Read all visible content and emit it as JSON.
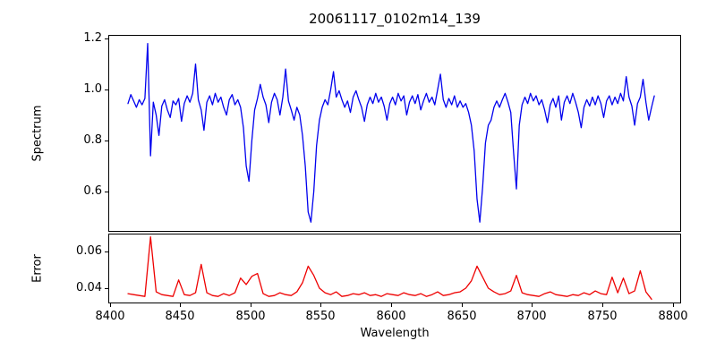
{
  "title": "20061117_0102m14_139",
  "chart_data": {
    "type": "line",
    "title": "20061117_0102m14_139",
    "xlabel": "Wavelength",
    "xlim": [
      8399,
      8806
    ],
    "grid": false,
    "legend": "none",
    "x_ticks": [
      8400,
      8450,
      8500,
      8550,
      8600,
      8650,
      8700,
      8750,
      8800
    ],
    "x_tick_labels": [
      "8400",
      "8450",
      "8500",
      "8550",
      "8600",
      "8650",
      "8700",
      "8750",
      "8800"
    ],
    "absorption_line_wavelengths": [
      8428,
      8498,
      8542,
      8662,
      8688
    ],
    "panels": [
      {
        "name": "spectrum",
        "ylabel": "Spectrum",
        "color": "#0000ee",
        "ylim": [
          0.442,
          1.214
        ],
        "y_ticks": [
          0.6,
          0.8,
          1.0,
          1.2
        ],
        "y_tick_labels": [
          "0.6",
          "0.8",
          "1.0",
          "1.2"
        ],
        "x_start": 8413,
        "x_step": 2,
        "values": [
          0.945,
          0.98,
          0.955,
          0.93,
          0.96,
          0.94,
          0.965,
          1.18,
          0.74,
          0.95,
          0.9,
          0.82,
          0.935,
          0.96,
          0.92,
          0.89,
          0.955,
          0.94,
          0.965,
          0.875,
          0.945,
          0.975,
          0.95,
          0.985,
          1.1,
          0.96,
          0.92,
          0.84,
          0.95,
          0.975,
          0.94,
          0.985,
          0.95,
          0.97,
          0.93,
          0.9,
          0.96,
          0.98,
          0.94,
          0.96,
          0.93,
          0.85,
          0.7,
          0.64,
          0.8,
          0.92,
          0.965,
          1.02,
          0.97,
          0.94,
          0.87,
          0.95,
          0.985,
          0.96,
          0.9,
          0.97,
          1.08,
          0.955,
          0.92,
          0.88,
          0.93,
          0.9,
          0.82,
          0.7,
          0.52,
          0.48,
          0.6,
          0.78,
          0.88,
          0.93,
          0.96,
          0.94,
          1.0,
          1.07,
          0.97,
          0.995,
          0.96,
          0.93,
          0.955,
          0.91,
          0.97,
          0.995,
          0.96,
          0.93,
          0.875,
          0.94,
          0.97,
          0.945,
          0.985,
          0.95,
          0.97,
          0.935,
          0.88,
          0.945,
          0.97,
          0.94,
          0.985,
          0.955,
          0.975,
          0.9,
          0.95,
          0.975,
          0.945,
          0.98,
          0.92,
          0.955,
          0.985,
          0.95,
          0.97,
          0.94,
          1.0,
          1.06,
          0.96,
          0.93,
          0.965,
          0.94,
          0.975,
          0.93,
          0.955,
          0.93,
          0.945,
          0.91,
          0.86,
          0.76,
          0.57,
          0.48,
          0.62,
          0.79,
          0.86,
          0.88,
          0.93,
          0.955,
          0.93,
          0.96,
          0.985,
          0.95,
          0.91,
          0.75,
          0.61,
          0.86,
          0.94,
          0.97,
          0.945,
          0.985,
          0.955,
          0.975,
          0.94,
          0.96,
          0.92,
          0.87,
          0.94,
          0.965,
          0.93,
          0.975,
          0.88,
          0.95,
          0.975,
          0.945,
          0.985,
          0.95,
          0.91,
          0.85,
          0.93,
          0.96,
          0.935,
          0.97,
          0.94,
          0.975,
          0.945,
          0.89,
          0.955,
          0.975,
          0.94,
          0.97,
          0.945,
          0.985,
          0.955,
          1.05,
          0.97,
          0.935,
          0.86,
          0.945,
          0.97,
          1.04,
          0.95,
          0.88,
          0.93,
          0.975
        ]
      },
      {
        "name": "error",
        "ylabel": "Error",
        "color": "#ee0000",
        "ylim": [
          0.0317,
          0.0698
        ],
        "y_ticks": [
          0.04,
          0.06
        ],
        "y_tick_labels": [
          "0.04",
          "0.06"
        ],
        "x_start": 8413,
        "x_step": 4,
        "values": [
          0.037,
          0.0365,
          0.036,
          0.0355,
          0.068,
          0.038,
          0.0365,
          0.036,
          0.0355,
          0.0445,
          0.0365,
          0.036,
          0.0375,
          0.053,
          0.0375,
          0.036,
          0.0355,
          0.037,
          0.036,
          0.0375,
          0.0455,
          0.042,
          0.0465,
          0.048,
          0.037,
          0.0355,
          0.036,
          0.0375,
          0.0365,
          0.036,
          0.038,
          0.043,
          0.052,
          0.047,
          0.04,
          0.0375,
          0.0365,
          0.038,
          0.0355,
          0.036,
          0.037,
          0.0365,
          0.0375,
          0.036,
          0.0365,
          0.0355,
          0.037,
          0.0365,
          0.036,
          0.0375,
          0.0365,
          0.036,
          0.037,
          0.0355,
          0.0365,
          0.038,
          0.036,
          0.0365,
          0.0375,
          0.038,
          0.04,
          0.044,
          0.052,
          0.046,
          0.04,
          0.038,
          0.0365,
          0.037,
          0.0385,
          0.047,
          0.0375,
          0.0365,
          0.036,
          0.0355,
          0.037,
          0.038,
          0.0365,
          0.036,
          0.0355,
          0.0365,
          0.036,
          0.0375,
          0.0365,
          0.0385,
          0.037,
          0.0365,
          0.046,
          0.0375,
          0.0455,
          0.037,
          0.0385,
          0.0495,
          0.038,
          0.034
        ]
      }
    ]
  }
}
